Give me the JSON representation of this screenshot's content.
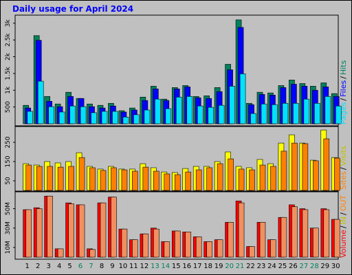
{
  "chart_data": [
    {
      "type": "bar",
      "title": "Daily usage for April 2024",
      "categories": [
        "1",
        "2",
        "3",
        "4",
        "5",
        "6",
        "7",
        "8",
        "9",
        "10",
        "11",
        "12",
        "13",
        "14",
        "15",
        "16",
        "17",
        "18",
        "19",
        "20",
        "21",
        "22",
        "23",
        "24",
        "25",
        "26",
        "27",
        "28",
        "29",
        "30"
      ],
      "category_colors": [
        "#000000",
        "#000000",
        "#000000",
        "#000000",
        "#000000",
        "#00805c",
        "#00805c",
        "#000000",
        "#000000",
        "#000000",
        "#000000",
        "#000000",
        "#00805c",
        "#00805c",
        "#000000",
        "#000000",
        "#000000",
        "#000000",
        "#000000",
        "#00805c",
        "#00805c",
        "#000000",
        "#000000",
        "#000000",
        "#000000",
        "#000000",
        "#00805c",
        "#00805c",
        "#000000",
        "#000000"
      ],
      "legend_separator": "/",
      "ylim": [
        0,
        3200
      ],
      "yticks": [
        500,
        {
          "value": 1000,
          "label": "1k"
        },
        {
          "value": 1500,
          "label": "1.5k"
        },
        {
          "value": 2000,
          "label": "2k"
        },
        {
          "value": 2500,
          "label": "2.5k"
        },
        {
          "value": 3000,
          "label": "3k"
        }
      ],
      "series": [
        {
          "name": "Hits",
          "color": "#00805c",
          "values": [
            550,
            2630,
            815,
            590,
            940,
            755,
            590,
            550,
            610,
            390,
            470,
            795,
            1120,
            735,
            1080,
            1140,
            815,
            835,
            1080,
            1775,
            3100,
            610,
            940,
            920,
            1140,
            1305,
            1200,
            1120,
            1220,
            900
          ]
        },
        {
          "name": "Files",
          "color": "#0000ff",
          "values": [
            470,
            2490,
            670,
            510,
            815,
            755,
            510,
            470,
            530,
            350,
            410,
            695,
            1040,
            695,
            1040,
            1100,
            775,
            755,
            960,
            1610,
            2875,
            570,
            875,
            855,
            1080,
            1180,
            1120,
            1000,
            1100,
            815
          ]
        },
        {
          "name": "Pages",
          "color": "#00e0ff",
          "values": [
            370,
            1270,
            510,
            350,
            530,
            510,
            330,
            370,
            370,
            200,
            270,
            410,
            735,
            450,
            795,
            815,
            530,
            490,
            550,
            1120,
            1490,
            305,
            590,
            570,
            610,
            610,
            735,
            610,
            815,
            530
          ]
        }
      ]
    },
    {
      "type": "bar",
      "ylim": [
        0,
        325
      ],
      "yticks": [
        50,
        150,
        250
      ],
      "series": [
        {
          "name": "Visits",
          "color": "#ffff00",
          "legend_color": "#c0c000",
          "values": [
            139,
            132,
            150,
            143,
            150,
            196,
            125,
            111,
            125,
            111,
            111,
            139,
            118,
            96,
            93,
            114,
            125,
            125,
            150,
            200,
            125,
            118,
            161,
            139,
            246,
            289,
            246,
            157,
            314,
            171
          ]
        },
        {
          "name": "Sites",
          "color": "#ff8000",
          "values": [
            132,
            125,
            125,
            121,
            125,
            171,
            118,
            104,
            118,
            107,
            100,
            121,
            100,
            86,
            82,
            96,
            107,
            118,
            139,
            164,
            111,
            107,
            132,
            125,
            204,
            246,
            243,
            154,
            268,
            168
          ]
        }
      ]
    },
    {
      "type": "bar",
      "ylim": [
        0,
        66
      ],
      "yticks": [
        {
          "value": 10,
          "label": "10M"
        },
        {
          "value": 30,
          "label": "30M"
        },
        {
          "value": 50,
          "label": "50M"
        }
      ],
      "legend": [
        {
          "text": "Volume",
          "color": "#ff0000"
        },
        {
          "text": "IN",
          "color": "#c0c000"
        },
        {
          "text": "OUT",
          "color": "#ff8000"
        }
      ],
      "series": [
        {
          "color": "#ff0000",
          "values": [
            49,
            51,
            63,
            8.6,
            56,
            54,
            8.6,
            56,
            62,
            29,
            18,
            24,
            30,
            16,
            27,
            26,
            21,
            16,
            18,
            36,
            58,
            11,
            36,
            18,
            41,
            54,
            50,
            30,
            50,
            39
          ]
        },
        {
          "color": "#f09060",
          "values": [
            49,
            50,
            63,
            8.6,
            55,
            54,
            7.9,
            56,
            62,
            29,
            18,
            24,
            29,
            16,
            27,
            26,
            21,
            16,
            18,
            36,
            56,
            11,
            36,
            18,
            41,
            52,
            49,
            30,
            49,
            39
          ]
        }
      ]
    }
  ]
}
